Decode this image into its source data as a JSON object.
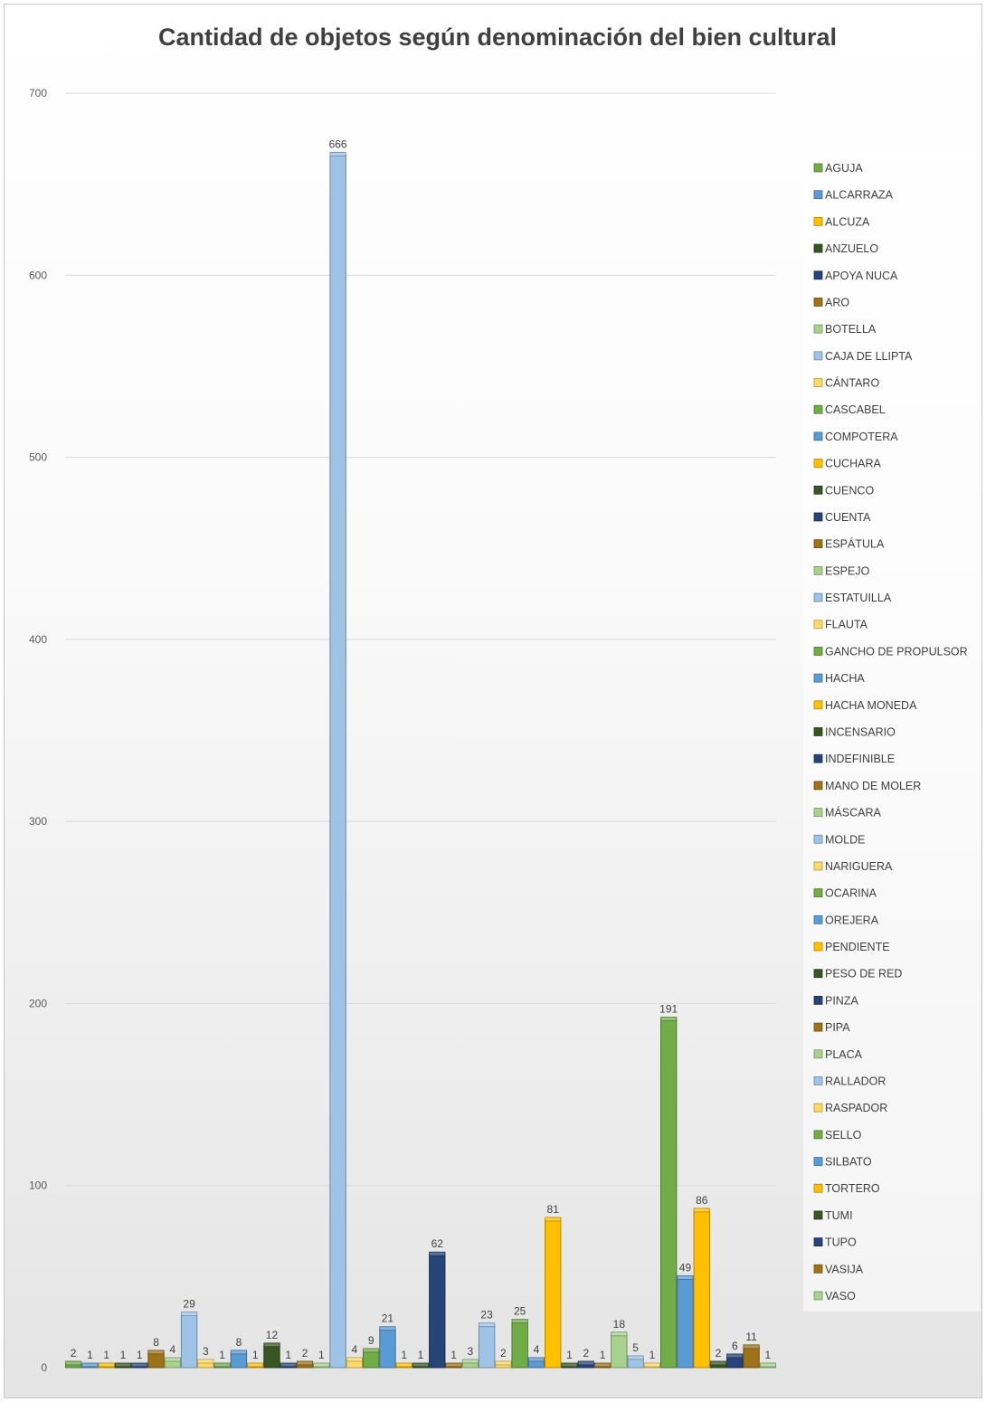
{
  "chart_data": {
    "type": "bar",
    "title": "Cantidad de objetos según denominación del bien cultural",
    "xlabel": "",
    "ylabel": "",
    "ylim": [
      0,
      700
    ],
    "yticks": [
      "0",
      "100",
      "200",
      "300",
      "400",
      "500",
      "600",
      "700"
    ],
    "grid": true,
    "legend_position": "right",
    "palette": [
      "#70ad47",
      "#5b9bd5",
      "#ffc000",
      "#375623",
      "#264478",
      "#9e7317",
      "#a9d18e",
      "#9dc3e6",
      "#ffd966"
    ],
    "series": [
      {
        "name": "AGUJA",
        "value": 2
      },
      {
        "name": "ALCARRAZA",
        "value": 1
      },
      {
        "name": "ALCUZA",
        "value": 1
      },
      {
        "name": "ANZUELO",
        "value": 1
      },
      {
        "name": "APOYA NUCA",
        "value": 1
      },
      {
        "name": "ARO",
        "value": 8
      },
      {
        "name": "BOTELLA",
        "value": 4
      },
      {
        "name": "CAJA DE LLIPTA",
        "value": 29
      },
      {
        "name": "CÁNTARO",
        "value": 3
      },
      {
        "name": "CASCABEL",
        "value": 1
      },
      {
        "name": "COMPOTERA",
        "value": 8
      },
      {
        "name": "CUCHARA",
        "value": 1
      },
      {
        "name": "CUENCO",
        "value": 12
      },
      {
        "name": "CUENTA",
        "value": 1
      },
      {
        "name": "ESPÁTULA",
        "value": 2
      },
      {
        "name": "ESPEJO",
        "value": 1
      },
      {
        "name": "ESTATUILLA",
        "value": 666
      },
      {
        "name": "FLAUTA",
        "value": 4
      },
      {
        "name": "GANCHO DE PROPULSOR",
        "value": 9
      },
      {
        "name": "HACHA",
        "value": 21
      },
      {
        "name": "HACHA MONEDA",
        "value": 1
      },
      {
        "name": "INCENSARIO",
        "value": 1
      },
      {
        "name": "INDEFINIBLE",
        "value": 62
      },
      {
        "name": "MANO DE MOLER",
        "value": 1
      },
      {
        "name": "MÁSCARA",
        "value": 3
      },
      {
        "name": "MOLDE",
        "value": 23
      },
      {
        "name": "NARIGUERA",
        "value": 2
      },
      {
        "name": "OCARINA",
        "value": 25
      },
      {
        "name": "OREJERA",
        "value": 4
      },
      {
        "name": "PENDIENTE",
        "value": 81
      },
      {
        "name": "PESO DE RED",
        "value": 1
      },
      {
        "name": "PINZA",
        "value": 2
      },
      {
        "name": "PIPA",
        "value": 1
      },
      {
        "name": "PLACA",
        "value": 18
      },
      {
        "name": "RALLADOR",
        "value": 5
      },
      {
        "name": "RASPADOR",
        "value": 1
      },
      {
        "name": "SELLO",
        "value": 191
      },
      {
        "name": "SILBATO",
        "value": 49
      },
      {
        "name": "TORTERO",
        "value": 86
      },
      {
        "name": "TUMI",
        "value": 2
      },
      {
        "name": "TUPO",
        "value": 6
      },
      {
        "name": "VASIJA",
        "value": 11
      },
      {
        "name": "VASO",
        "value": 1
      }
    ]
  }
}
